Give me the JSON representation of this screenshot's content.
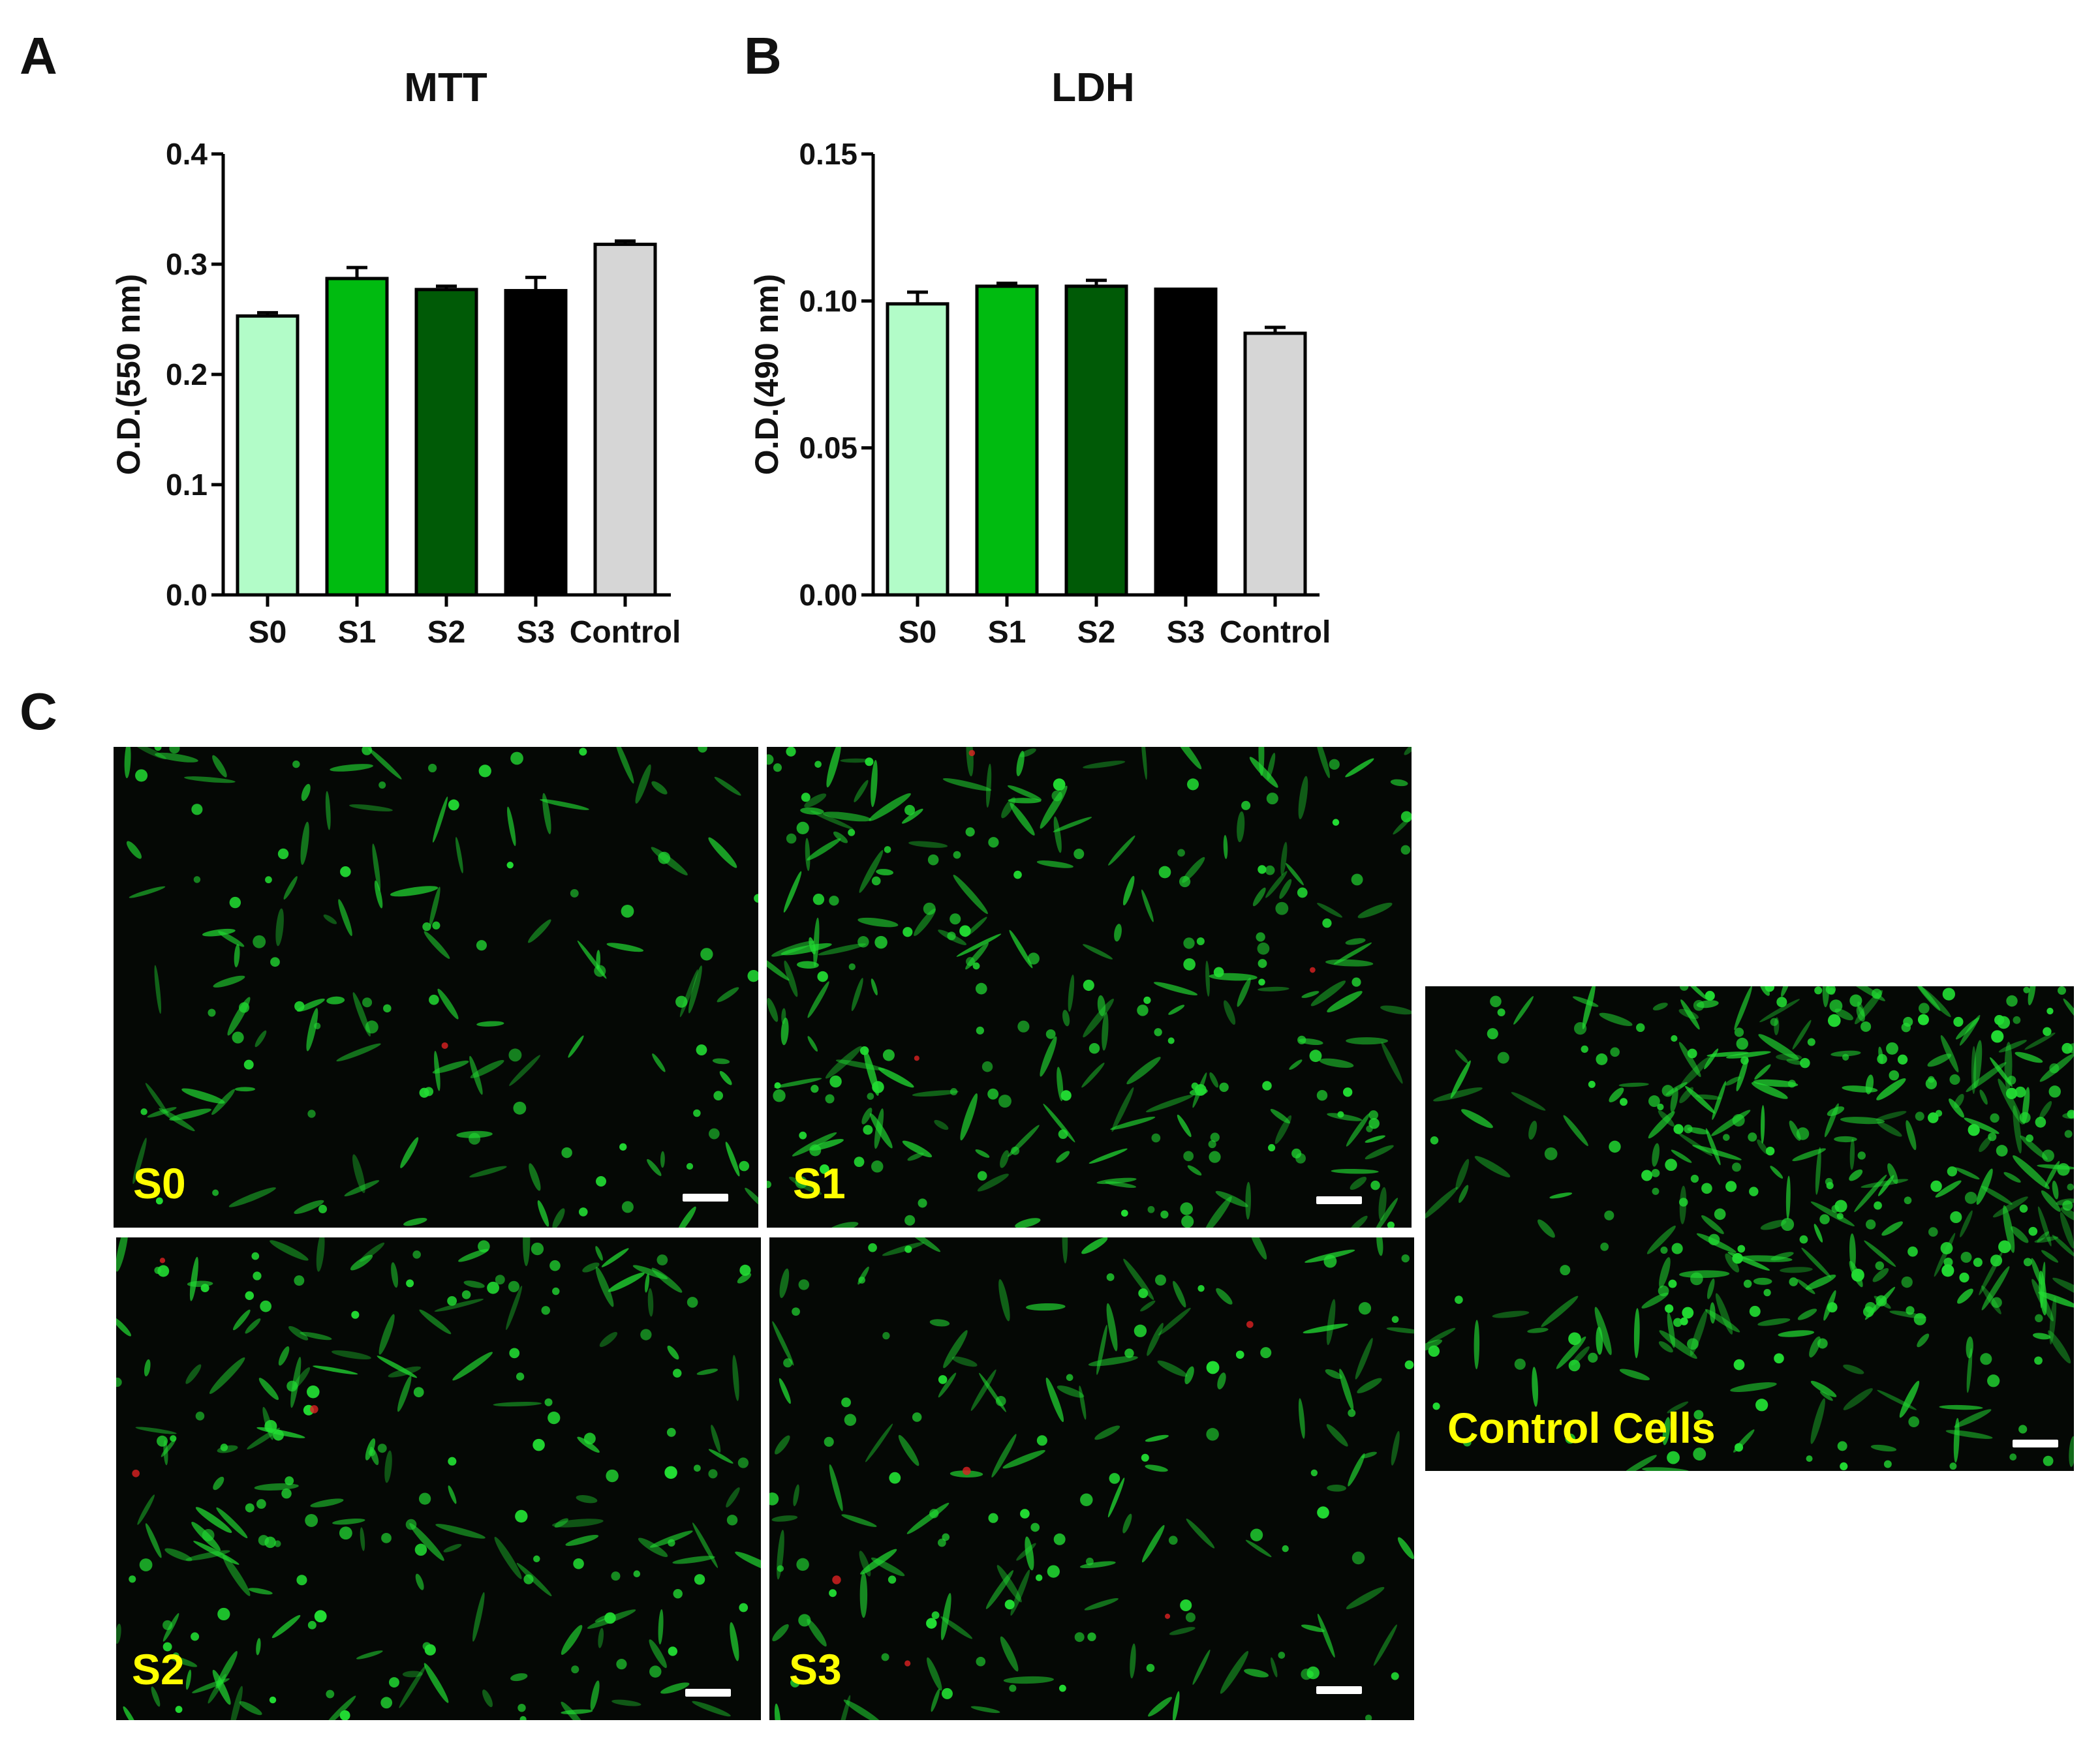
{
  "panels": {
    "a": "A",
    "b": "B",
    "c": "C"
  },
  "chart_data": [
    {
      "type": "bar",
      "title": "MTT",
      "xlabel": "",
      "ylabel": "O.D.(550 nm)",
      "categories": [
        "S0",
        "S1",
        "S2",
        "S3",
        "Control"
      ],
      "values": [
        0.253,
        0.287,
        0.277,
        0.276,
        0.318
      ],
      "errors": [
        0.003,
        0.01,
        0.003,
        0.012,
        0.003
      ],
      "ylim": [
        0,
        0.4
      ],
      "yticks": [
        0.0,
        0.1,
        0.2,
        0.3,
        0.4
      ],
      "ytick_labels": [
        "0.0",
        "0.1",
        "0.2",
        "0.3",
        "0.4"
      ],
      "colors": [
        "#b2fcc8",
        "#00bb10",
        "#005a06",
        "#000000",
        "#d6d6d6"
      ],
      "grid": false
    },
    {
      "type": "bar",
      "title": "LDH",
      "xlabel": "",
      "ylabel": "O.D.(490 nm)",
      "categories": [
        "S0",
        "S1",
        "S2",
        "S3",
        "Control"
      ],
      "values": [
        0.099,
        0.105,
        0.105,
        0.104,
        0.089
      ],
      "errors": [
        0.004,
        0.001,
        0.002,
        0.0,
        0.002
      ],
      "ylim": [
        0,
        0.15
      ],
      "yticks": [
        0.0,
        0.05,
        0.1,
        0.15
      ],
      "ytick_labels": [
        "0.00",
        "0.05",
        "0.10",
        "0.15"
      ],
      "colors": [
        "#b2fcc8",
        "#00bb10",
        "#005a06",
        "#000000",
        "#d6d6d6"
      ],
      "grid": false
    }
  ],
  "micrographs": {
    "s0": "S0",
    "s1": "S1",
    "s2": "S2",
    "s3": "S3",
    "control": "Control Cells"
  },
  "colors": {
    "label": "#ffff00",
    "cell_green": "#22dd33",
    "cell_red": "#dd2222",
    "background": "#050805"
  }
}
